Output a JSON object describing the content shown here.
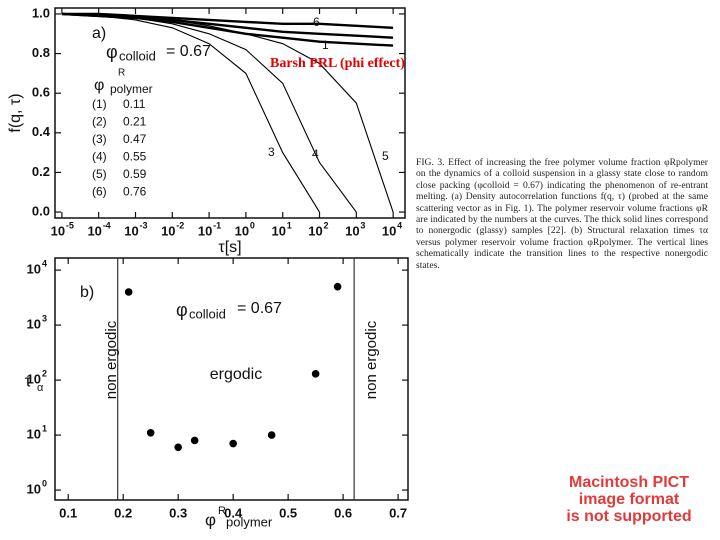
{
  "chart_data": [
    {
      "type": "line",
      "panel": "a)",
      "phi_symbol": "φ",
      "phi_subscript": "colloid",
      "phi_value": "= 0.67",
      "legend_title_symbol": "φ",
      "legend_title_sup": "R",
      "legend_title_sub": "polymer",
      "xlabel": "τ[s]",
      "ylabel": "f(q, τ)",
      "xscale": "log",
      "xlim": [
        6.5e-06,
        21000
      ],
      "ylim": [
        -0.03,
        1.03
      ],
      "xticks": [
        {
          "value": 1e-05,
          "label": "10",
          "sup": "-5"
        },
        {
          "value": 0.0001,
          "label": "10",
          "sup": "-4"
        },
        {
          "value": 0.001,
          "label": "10",
          "sup": "-3"
        },
        {
          "value": 0.01,
          "label": "10",
          "sup": "-2"
        },
        {
          "value": 0.1,
          "label": "10",
          "sup": "-1"
        },
        {
          "value": 1,
          "label": "10",
          "sup": "0"
        },
        {
          "value": 10,
          "label": "10",
          "sup": "1"
        },
        {
          "value": 100,
          "label": "10",
          "sup": "2"
        },
        {
          "value": 1000,
          "label": "10",
          "sup": "3"
        },
        {
          "value": 10000,
          "label": "10",
          "sup": "4"
        }
      ],
      "yticks": [
        {
          "value": 0,
          "label": "0.0"
        },
        {
          "value": 0.2,
          "label": "0.2"
        },
        {
          "value": 0.4,
          "label": "0.4"
        },
        {
          "value": 0.6,
          "label": "0.6"
        },
        {
          "value": 0.8,
          "label": "0.8"
        },
        {
          "value": 1,
          "label": "1.0"
        }
      ],
      "x": [
        1e-05,
        0.0001,
        0.001,
        0.01,
        0.1,
        1,
        10,
        100,
        1000,
        10000
      ],
      "series": [
        {
          "name": "(1)",
          "phi": "0.11",
          "curve_label": "1",
          "thick": true,
          "color": "#000000",
          "values": [
            1.0,
            0.99,
            0.98,
            0.96,
            0.93,
            0.9,
            0.88,
            0.86,
            0.85,
            0.84
          ]
        },
        {
          "name": "(2)",
          "phi": "0.21",
          "thick": true,
          "color": "#000000",
          "values": [
            1.0,
            0.99,
            0.98,
            0.97,
            0.95,
            0.93,
            0.91,
            0.9,
            0.89,
            0.88
          ]
        },
        {
          "name": "(3)",
          "phi": "0.47",
          "curve_label": "3",
          "thick": false,
          "color": "#000000",
          "values": [
            1.0,
            0.99,
            0.97,
            0.93,
            0.85,
            0.7,
            0.3,
            0.0,
            null,
            null
          ]
        },
        {
          "name": "(4)",
          "phi": "0.55",
          "curve_label": "4",
          "thick": false,
          "color": "#000000",
          "values": [
            1.0,
            0.99,
            0.98,
            0.95,
            0.9,
            0.82,
            0.65,
            0.25,
            0.0,
            null
          ]
        },
        {
          "name": "(5)",
          "phi": "0.59",
          "curve_label": "5",
          "thick": false,
          "color": "#000000",
          "values": [
            1.0,
            1.0,
            0.99,
            0.97,
            0.94,
            0.9,
            0.85,
            0.75,
            0.55,
            0.0
          ]
        },
        {
          "name": "(6)",
          "phi": "0.76",
          "curve_label": "6",
          "thick": true,
          "color": "#000000",
          "values": [
            1.0,
            1.0,
            0.99,
            0.98,
            0.97,
            0.96,
            0.95,
            0.95,
            0.94,
            0.93
          ]
        }
      ]
    },
    {
      "type": "scatter",
      "panel": "b)",
      "phi_symbol": "φ",
      "phi_subscript": "colloid",
      "phi_value": "= 0.67",
      "ylabel": "τ",
      "ylabel_sub": "α",
      "xlabel_symbol": "φ",
      "xlabel_sup": "R",
      "xlabel_sub": "polymer",
      "region_left": "non ergodic",
      "region_middle": "ergodic",
      "region_right": "non ergodic",
      "yscale": "log",
      "xlim": [
        0.076,
        0.718
      ],
      "ylim": [
        0.66,
        16600
      ],
      "xticks": [
        0.1,
        0.2,
        0.3,
        0.4,
        0.5,
        0.6,
        0.7
      ],
      "yticks": [
        {
          "value": 1,
          "label": "10",
          "sup": "0"
        },
        {
          "value": 10,
          "label": "10",
          "sup": "1"
        },
        {
          "value": 100,
          "label": "10",
          "sup": "2"
        },
        {
          "value": 1000,
          "label": "10",
          "sup": "3"
        },
        {
          "value": 10000,
          "label": "10",
          "sup": "4"
        }
      ],
      "vlines": [
        0.19,
        0.62
      ],
      "x": [
        0.21,
        0.25,
        0.3,
        0.33,
        0.4,
        0.47,
        0.55,
        0.59
      ],
      "values": [
        4000,
        11,
        6,
        8,
        7,
        10,
        130,
        5000
      ],
      "color": "#000000"
    }
  ],
  "caption": "FIG. 3. Effect of increasing the free polymer volume fraction φRpolymer on the dynamics of a colloid suspension in a glassy state close to random close packing (φcolloid = 0.67) indicating the phenomenon of re-entrant melting. (a) Density autocorrelation functions f(q, τ) (probed at the same scattering vector as in Fig. 1). The polymer reservoir volume fractions φR are indicated by the numbers at the curves. The thick solid lines correspond to nonergodic (glassy) samples [22]. (b) Structural relaxation times τα versus polymer reservoir volume fraction φRpolymer. The vertical lines schematically indicate the transition lines to the respective nonergodic states.",
  "overlay_note": "Barsh PRL (phi effect)",
  "notice": [
    "Macintosh PICT",
    "image format",
    "is not supported"
  ]
}
